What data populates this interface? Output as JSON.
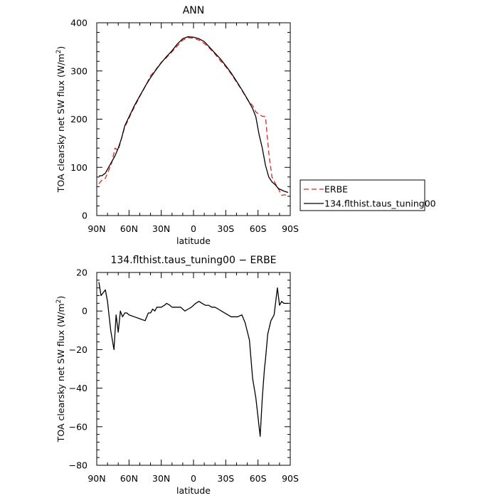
{
  "chart_data": [
    {
      "type": "line",
      "title": "ANN",
      "xlabel": "latitude",
      "ylabel": "TOA clearsky net SW flux (W/m²)",
      "ylabel_parts": {
        "main": "TOA clearsky net SW flux (W/m",
        "sup": "2",
        "close": ")"
      },
      "xlim": [
        90,
        -90
      ],
      "ylim": [
        0,
        400
      ],
      "x_ticks": [
        90,
        60,
        30,
        0,
        -30,
        -60,
        -90
      ],
      "x_tick_labels": [
        "90N",
        "60N",
        "30N",
        "0",
        "30S",
        "60S",
        "90S"
      ],
      "y_ticks": [
        0,
        100,
        200,
        300,
        400
      ],
      "y_tick_labels": [
        "0",
        "100",
        "200",
        "300",
        "400"
      ],
      "grid": false,
      "legend": "right",
      "series": [
        {
          "name": "ERBE",
          "color": "#e8211d",
          "style": "dashed",
          "x": [
            88,
            85,
            82,
            79,
            76,
            73,
            70,
            67,
            64,
            61,
            58,
            55,
            50,
            45,
            40,
            35,
            30,
            25,
            20,
            15,
            10,
            5,
            0,
            -5,
            -10,
            -15,
            -20,
            -25,
            -30,
            -35,
            -40,
            -45,
            -50,
            -55,
            -58,
            -61,
            -64,
            -67,
            -70,
            -73,
            -76,
            -79,
            -82,
            -85,
            -88
          ],
          "y": [
            66,
            74,
            77,
            93,
            110,
            140,
            135,
            160,
            183,
            197,
            212,
            225,
            247,
            267,
            290,
            303,
            318,
            328,
            340,
            352,
            364,
            369,
            368,
            364,
            357,
            347,
            335,
            321,
            309,
            294,
            277,
            260,
            241,
            228,
            215,
            210,
            206,
            205,
            130,
            80,
            67,
            55,
            42,
            43,
            42
          ]
        },
        {
          "name": "134.flthist.taus_tuning00",
          "color": "#000000",
          "style": "solid",
          "x": [
            88,
            85,
            82,
            79,
            76,
            73,
            70,
            67,
            64,
            61,
            58,
            55,
            50,
            45,
            40,
            35,
            30,
            25,
            20,
            15,
            10,
            5,
            0,
            -5,
            -10,
            -15,
            -20,
            -25,
            -30,
            -35,
            -40,
            -45,
            -50,
            -55,
            -58,
            -61,
            -64,
            -67,
            -70,
            -73,
            -76,
            -79,
            -82,
            -85,
            -88
          ],
          "y": [
            82,
            83,
            88,
            100,
            112,
            124,
            140,
            160,
            186,
            200,
            214,
            228,
            248,
            268,
            286,
            302,
            317,
            330,
            342,
            356,
            367,
            371,
            370,
            367,
            361,
            349,
            337,
            325,
            311,
            296,
            279,
            261,
            242,
            222,
            205,
            168,
            140,
            104,
            80,
            70,
            64,
            56,
            53,
            50,
            48
          ]
        }
      ]
    },
    {
      "type": "line",
      "title": "134.flthist.taus_tuning00 − ERBE",
      "xlabel": "latitude",
      "ylabel": "TOA clearsky net SW flux (W/m²)",
      "ylabel_parts": {
        "main": "TOA clearsky net SW flux (W/m",
        "sup": "2",
        "close": ")"
      },
      "xlim": [
        90,
        -90
      ],
      "ylim": [
        -80,
        20
      ],
      "x_ticks": [
        90,
        60,
        30,
        0,
        -30,
        -60,
        -90
      ],
      "x_tick_labels": [
        "90N",
        "60N",
        "30N",
        "0",
        "30S",
        "60S",
        "90S"
      ],
      "y_ticks": [
        -80,
        -60,
        -40,
        -20,
        0,
        20
      ],
      "y_tick_labels": [
        "−80",
        "−60",
        "−40",
        "−20",
        "0",
        "20"
      ],
      "grid": false,
      "series": [
        {
          "color": "#000000",
          "style": "solid",
          "x": [
            88,
            86,
            82,
            80,
            77,
            74,
            72,
            70,
            68,
            66,
            64,
            62,
            60,
            55,
            50,
            45,
            42,
            40,
            38,
            36,
            34,
            32,
            30,
            27,
            25,
            22,
            20,
            18,
            15,
            12,
            10,
            8,
            5,
            2,
            0,
            -2,
            -5,
            -8,
            -11,
            -14,
            -17,
            -20,
            -23,
            -26,
            -29,
            -32,
            -35,
            -38,
            -41,
            -45,
            -48,
            -52,
            -55,
            -58,
            -60,
            -62,
            -64,
            -66,
            -67,
            -69,
            -72,
            -75,
            -78,
            -80,
            -82,
            -84,
            -86,
            -88
          ],
          "y": [
            15,
            8,
            11,
            5,
            -10,
            -20,
            -2,
            -11,
            0,
            -3,
            -1,
            -1,
            -2,
            -3,
            -4,
            -5,
            -1,
            -1,
            1,
            0,
            2,
            2,
            2,
            3,
            4,
            3,
            2,
            2,
            2,
            2,
            1,
            0,
            1,
            2,
            3,
            4,
            5,
            4,
            3,
            3,
            2,
            2,
            1,
            0,
            -1,
            -2,
            -3,
            -3,
            -3,
            -2,
            -6,
            -15,
            -35,
            -45,
            -55,
            -65,
            -45,
            -30,
            -25,
            -12,
            -5,
            -2,
            12,
            3,
            5,
            4,
            4,
            4
          ]
        }
      ]
    }
  ]
}
